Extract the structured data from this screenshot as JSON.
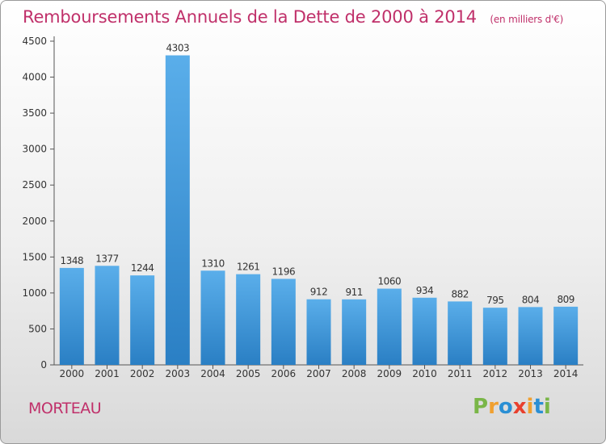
{
  "header": {
    "title": "Remboursements Annuels de la Dette de 2000 à 2014",
    "subtitle": "(en milliers d'€)"
  },
  "footer": {
    "city": "MORTEAU",
    "brand": "Proxiti"
  },
  "colors": {
    "title": "#c0306a",
    "bar_top": "#5aaeea",
    "bar_bottom": "#2a7fc4",
    "logo": [
      "#7ab648",
      "#f0a030",
      "#2a8fd4",
      "#e8402e",
      "#f0a030",
      "#2a8fd4",
      "#7ab648"
    ]
  },
  "chart_data": {
    "type": "bar",
    "title": "Remboursements Annuels de la Dette de 2000 à 2014",
    "subtitle": "(en milliers d'€)",
    "xlabel": "",
    "ylabel": "",
    "categories": [
      "2000",
      "2001",
      "2002",
      "2003",
      "2004",
      "2005",
      "2006",
      "2007",
      "2008",
      "2009",
      "2010",
      "2011",
      "2012",
      "2013",
      "2014"
    ],
    "values": [
      1348,
      1377,
      1244,
      4303,
      1310,
      1261,
      1196,
      912,
      911,
      1060,
      934,
      882,
      795,
      804,
      809
    ],
    "ylim": [
      0,
      4500
    ],
    "yticks": [
      0,
      500,
      1000,
      1500,
      2000,
      2500,
      3000,
      3500,
      4000,
      4500
    ],
    "grid": false,
    "data_labels": true
  }
}
